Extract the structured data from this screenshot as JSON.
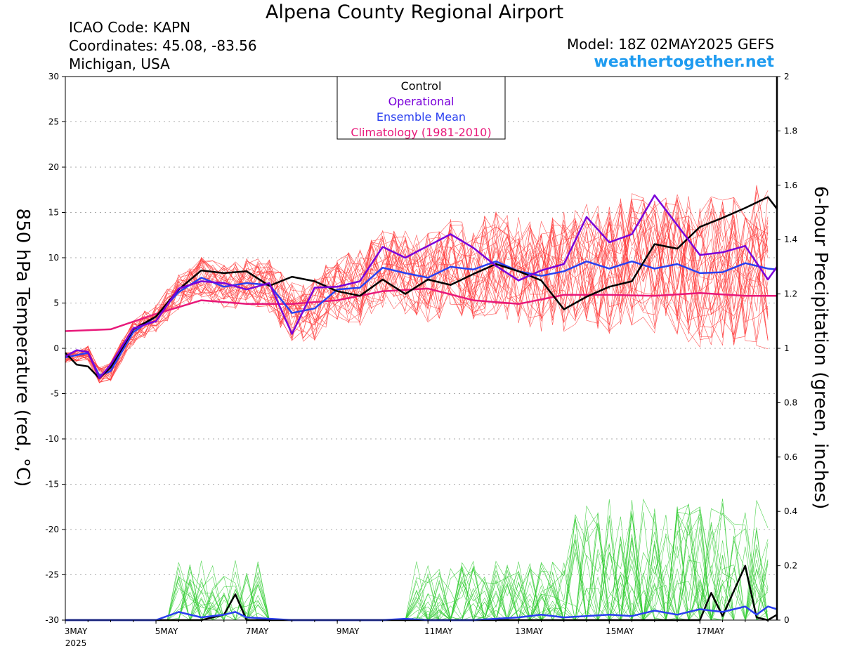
{
  "header": {
    "title": "Alpena County Regional Airport",
    "icao": "ICAO Code: KAPN",
    "coords": "Coordinates: 45.08, -83.56",
    "region": "Michigan, USA",
    "model": "Model: 18Z 02MAY2025 GEFS",
    "site": "weathertogether.net"
  },
  "colors": {
    "control": "#000000",
    "operational": "#7a00d9",
    "ensemble_mean": "#2a3ff0",
    "climatology": "#e8197a",
    "members_temp": "#ff3b3b",
    "members_precip": "#33cc33"
  },
  "chart_data": {
    "type": "line",
    "title": "Alpena County Regional Airport",
    "ylabel": "850 hPa Temperature (red, °C)",
    "y2label": "6-hour Precipitation (green, inches)",
    "ylim": [
      -30,
      30
    ],
    "y2lim": [
      0,
      2
    ],
    "yticks": [
      "30",
      "25",
      "20",
      "15",
      "10",
      "5",
      "0",
      "-5",
      "-10",
      "-15",
      "-20",
      "-25",
      "-30"
    ],
    "y2ticks": [
      "2",
      "1.8",
      "1.6",
      "1.4",
      "1.2",
      "1",
      "0.8",
      "0.6",
      "0.4",
      "0.2",
      "0"
    ],
    "x_unit": "days from 3MAY 00Z",
    "xlim": [
      0,
      15.7
    ],
    "xticks": [
      {
        "x": 0,
        "label": "3MAY",
        "sub": "2025"
      },
      {
        "x": 2,
        "label": "5MAY"
      },
      {
        "x": 4,
        "label": "7MAY"
      },
      {
        "x": 6,
        "label": "9MAY"
      },
      {
        "x": 8,
        "label": "11MAY"
      },
      {
        "x": 10,
        "label": "13MAY"
      },
      {
        "x": 12,
        "label": "15MAY"
      },
      {
        "x": 14,
        "label": "17MAY"
      }
    ],
    "grid": true,
    "legend": {
      "position": "top-center",
      "entries": [
        {
          "label": "Control",
          "color": "#000000"
        },
        {
          "label": "Operational",
          "color": "#7a00d9"
        },
        {
          "label": "Ensemble Mean",
          "color": "#2a3ff0"
        },
        {
          "label": "Climatology (1981-2010)",
          "color": "#e8197a"
        }
      ]
    },
    "series": [
      {
        "name": "Climatology (1981-2010)",
        "axis": "temp",
        "x": [
          0,
          1,
          2,
          3,
          4,
          5,
          6,
          7,
          8,
          9,
          10,
          11,
          12,
          13,
          14,
          15,
          15.7
        ],
        "y": [
          1.9,
          2.1,
          3.8,
          5.3,
          4.9,
          4.9,
          5.3,
          6.3,
          6.6,
          5.3,
          4.9,
          5.9,
          5.9,
          5.8,
          6.1,
          5.8,
          5.8
        ]
      },
      {
        "name": "Ensemble Mean",
        "axis": "temp",
        "x": [
          0,
          0.5,
          0.75,
          1,
          1.5,
          2,
          2.5,
          3,
          3.5,
          4,
          4.5,
          5,
          5.5,
          6,
          6.5,
          7,
          7.5,
          8,
          8.5,
          9,
          9.5,
          10,
          10.5,
          11,
          11.5,
          12,
          12.5,
          13,
          13.5,
          14,
          14.5,
          15,
          15.5,
          15.7
        ],
        "y": [
          -1,
          -0.5,
          -3,
          -2.5,
          1.8,
          3.5,
          6.2,
          7.8,
          6.8,
          7.2,
          7,
          3.9,
          4.4,
          6.5,
          6.7,
          8.9,
          8.3,
          7.8,
          9,
          8.7,
          9.6,
          8.5,
          8,
          8.5,
          9.6,
          8.8,
          9.6,
          8.8,
          9.3,
          8.3,
          8.4,
          9.4,
          8.8,
          8.7
        ]
      },
      {
        "name": "Control",
        "axis": "temp",
        "x": [
          0,
          0.25,
          0.5,
          0.75,
          1,
          1.5,
          2,
          2.5,
          3,
          3.5,
          4,
          4.5,
          5,
          5.5,
          6,
          6.5,
          7,
          7.5,
          8,
          8.5,
          9,
          9.5,
          10,
          10.5,
          11,
          11.5,
          12,
          12.5,
          13,
          13.5,
          14,
          14.5,
          15,
          15.5,
          15.7
        ],
        "y": [
          -0.5,
          -1.8,
          -2,
          -3.3,
          -2.1,
          2.1,
          3.5,
          6.5,
          8.6,
          8.3,
          8.5,
          6.9,
          7.9,
          7.4,
          6.3,
          5.8,
          7.6,
          6,
          7.6,
          7,
          8.2,
          9.3,
          8.5,
          7.5,
          4.3,
          5.7,
          6.8,
          7.4,
          11.5,
          11,
          13.4,
          14.4,
          15.5,
          16.7,
          15.4
        ]
      },
      {
        "name": "Operational",
        "axis": "temp",
        "x": [
          0,
          0.25,
          0.5,
          0.75,
          1,
          1.5,
          2,
          2.5,
          3,
          3.5,
          4,
          4.5,
          5,
          5.5,
          6,
          6.5,
          7,
          7.5,
          8,
          8.5,
          9,
          9.5,
          10,
          10.5,
          11,
          11.5,
          12,
          12.5,
          13,
          13.5,
          14,
          14.5,
          15,
          15.5,
          15.7
        ],
        "y": [
          -0.9,
          -0.2,
          -0.4,
          -3.3,
          -1.8,
          2.2,
          3,
          6.6,
          7.4,
          7.2,
          6.5,
          7.2,
          1.6,
          6.7,
          6.8,
          7.4,
          11.2,
          10,
          11.3,
          12.6,
          11.1,
          9.1,
          7.5,
          8.6,
          9.3,
          14.5,
          11.7,
          12.6,
          16.9,
          13.6,
          10.3,
          10.6,
          11.3,
          7.6,
          9
        ]
      },
      {
        "name": "Control (precip)",
        "axis": "precip",
        "x": [
          0,
          1,
          2,
          3,
          3.5,
          3.75,
          4,
          5,
          6,
          7,
          8,
          9,
          10,
          11,
          12,
          13,
          14,
          14.25,
          14.5,
          15,
          15.25,
          15.5,
          15.7
        ],
        "y": [
          0,
          0,
          0,
          0,
          0.02,
          0.095,
          0,
          0,
          0,
          0,
          0,
          0,
          0,
          0,
          0,
          0,
          0,
          0.1,
          0.015,
          0.2,
          0.01,
          0,
          0.02
        ]
      },
      {
        "name": "Ensemble Mean (precip)",
        "axis": "precip",
        "x": [
          0,
          1,
          2,
          2.5,
          3,
          3.5,
          3.75,
          4,
          5,
          6,
          7,
          7.5,
          8,
          9,
          10,
          10.5,
          11,
          11.5,
          12,
          12.5,
          13,
          13.5,
          14,
          14.5,
          15,
          15.25,
          15.5,
          15.7
        ],
        "y": [
          0,
          0,
          0,
          0.03,
          0.01,
          0.02,
          0.03,
          0.01,
          0,
          0,
          0,
          0.005,
          0,
          0,
          0.01,
          0.02,
          0.01,
          0.015,
          0.02,
          0.015,
          0.035,
          0.02,
          0.04,
          0.03,
          0.05,
          0.02,
          0.05,
          0.04
        ]
      }
    ]
  }
}
